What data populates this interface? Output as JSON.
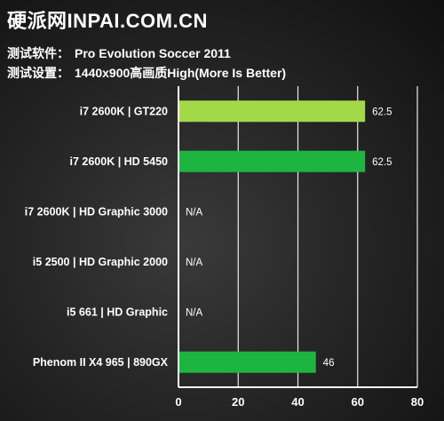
{
  "header": {
    "site": "硬派网INPAI.COM.CN",
    "software_label": "测试软件：",
    "software_value": "Pro Evolution Soccer 2011",
    "settings_label": "测试设置：",
    "settings_value": "1440x900高画质High(More Is Better)"
  },
  "colors": {
    "bar_primary": "#a3d948",
    "bar_other": "#1db53f",
    "axis": "#ffffff",
    "grid": "#ffffff",
    "text": "#ffffff"
  },
  "chart_data": {
    "type": "bar",
    "orientation": "horizontal",
    "categories": [
      "i7 2600K | GT220",
      "i7 2600K | HD 5450",
      "i7 2600K | HD Graphic 3000",
      "i5 2500 | HD Graphic 2000",
      "i5 661 | HD Graphic",
      "Phenom II X4 965 | 890GX"
    ],
    "values": [
      62.5,
      62.5,
      null,
      null,
      null,
      46
    ],
    "value_labels": [
      "62.5",
      "62.5",
      "N/A",
      "N/A",
      "N/A",
      "46"
    ],
    "bar_colors": [
      "#a3d948",
      "#1db53f",
      "#1db53f",
      "#1db53f",
      "#1db53f",
      "#1db53f"
    ],
    "xlim": [
      0,
      80
    ],
    "xticks": [
      0,
      20,
      40,
      60,
      80
    ],
    "grid": true
  }
}
